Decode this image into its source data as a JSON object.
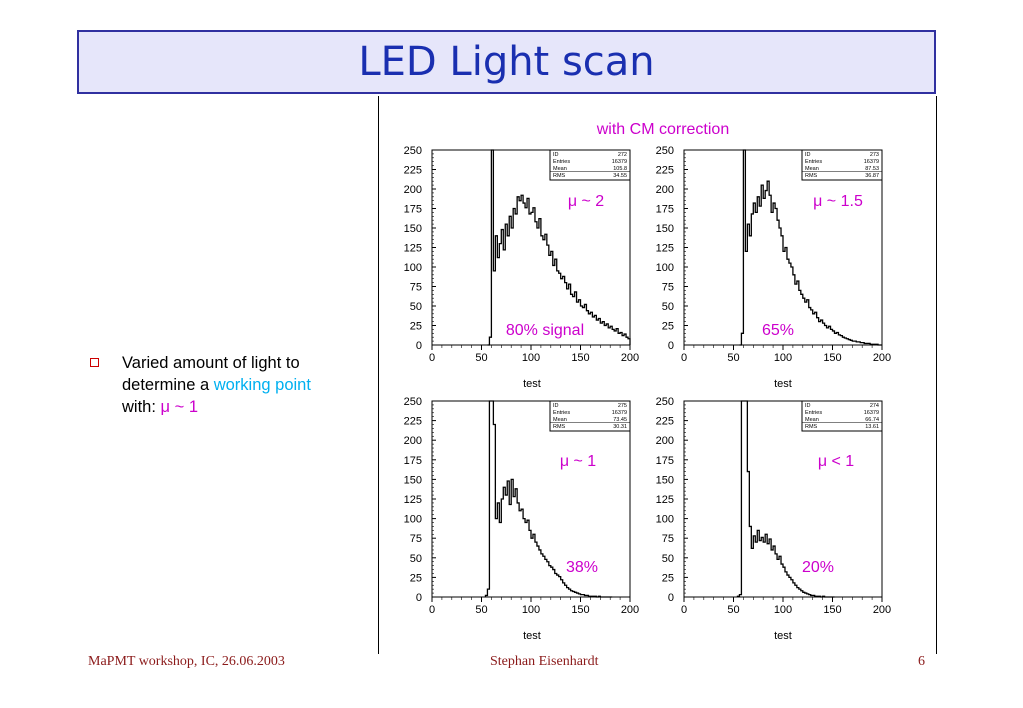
{
  "slide": {
    "title": "LED Light scan",
    "bullet": {
      "prefix": "Varied amount of light to determine a ",
      "highlight": "working point",
      "suffix_label": "with: ",
      "mu_expr": "μ ~ 1"
    }
  },
  "figure": {
    "caption": "with CM correction",
    "colors": {
      "annotation": "#cc00cc",
      "hist": "#000000"
    }
  },
  "footer": {
    "left": "MaPMT workshop, IC, 26.06.2003",
    "center": "Stephan Eisenhardt",
    "right": "6"
  },
  "chart_data": [
    {
      "type": "histogram",
      "xlabel": "test",
      "xlim": [
        0,
        200
      ],
      "ylim": [
        0,
        250
      ],
      "xticks": [
        "0",
        "50",
        "100",
        "150",
        "200"
      ],
      "yticks": [
        "0",
        "25",
        "50",
        "75",
        "100",
        "125",
        "150",
        "175",
        "200",
        "225",
        "250"
      ],
      "stats": [
        [
          "ID",
          "272"
        ],
        [
          "Entries",
          "16379"
        ],
        [
          "Mean",
          "105.8"
        ],
        [
          "RMS",
          "34.55"
        ]
      ],
      "annotations": [
        "μ ~ 2",
        "80% signal"
      ],
      "bin_width": 2,
      "x": [
        56,
        58,
        60,
        62,
        64,
        66,
        68,
        70,
        72,
        74,
        76,
        78,
        80,
        82,
        84,
        86,
        88,
        90,
        92,
        94,
        96,
        98,
        100,
        102,
        104,
        106,
        108,
        110,
        112,
        114,
        116,
        118,
        120,
        122,
        124,
        126,
        128,
        130,
        132,
        134,
        136,
        138,
        140,
        142,
        144,
        146,
        148,
        150,
        152,
        154,
        156,
        158,
        160,
        162,
        164,
        166,
        168,
        170,
        172,
        174,
        176,
        178,
        180,
        182,
        184,
        186,
        188,
        190,
        192,
        194,
        196,
        198
      ],
      "values": [
        0,
        10,
        250,
        95,
        140,
        112,
        130,
        148,
        122,
        155,
        140,
        165,
        150,
        175,
        168,
        190,
        185,
        192,
        182,
        176,
        188,
        168,
        170,
        176,
        158,
        150,
        162,
        140,
        135,
        142,
        128,
        115,
        120,
        102,
        110,
        95,
        92,
        85,
        88,
        80,
        72,
        78,
        65,
        62,
        68,
        55,
        58,
        50,
        48,
        52,
        44,
        40,
        42,
        36,
        38,
        32,
        34,
        28,
        30,
        25,
        27,
        22,
        24,
        20,
        18,
        21,
        15,
        16,
        12,
        14,
        10,
        8
      ]
    },
    {
      "type": "histogram",
      "xlabel": "test",
      "xlim": [
        0,
        200
      ],
      "ylim": [
        0,
        250
      ],
      "xticks": [
        "0",
        "50",
        "100",
        "150",
        "200"
      ],
      "yticks": [
        "0",
        "25",
        "50",
        "75",
        "100",
        "125",
        "150",
        "175",
        "200",
        "225",
        "250"
      ],
      "stats": [
        [
          "ID",
          "273"
        ],
        [
          "Entries",
          "16379"
        ],
        [
          "Mean",
          "87.53"
        ],
        [
          "RMS",
          "36.87"
        ]
      ],
      "annotations": [
        "μ ~ 1.5",
        "65%"
      ],
      "bin_width": 2,
      "x": [
        56,
        58,
        60,
        62,
        64,
        66,
        68,
        70,
        72,
        74,
        76,
        78,
        80,
        82,
        84,
        86,
        88,
        90,
        92,
        94,
        96,
        98,
        100,
        102,
        104,
        106,
        108,
        110,
        112,
        114,
        116,
        118,
        120,
        122,
        124,
        126,
        128,
        130,
        132,
        134,
        136,
        138,
        140,
        142,
        144,
        146,
        148,
        150,
        152,
        154,
        156,
        158,
        160,
        162,
        164,
        166,
        168,
        170,
        172,
        174,
        176,
        178,
        180,
        182,
        184,
        186,
        188,
        190,
        192,
        194,
        196,
        198
      ],
      "values": [
        0,
        15,
        250,
        120,
        155,
        140,
        168,
        182,
        170,
        190,
        178,
        205,
        188,
        198,
        210,
        192,
        170,
        182,
        175,
        160,
        150,
        140,
        120,
        125,
        110,
        105,
        100,
        90,
        78,
        82,
        70,
        65,
        60,
        55,
        58,
        48,
        45,
        40,
        42,
        35,
        30,
        32,
        28,
        25,
        22,
        24,
        20,
        18,
        15,
        16,
        13,
        12,
        10,
        9,
        8,
        7,
        6,
        5,
        5,
        4,
        4,
        3,
        3,
        2,
        2,
        2,
        1,
        1,
        1,
        1,
        0,
        0
      ]
    },
    {
      "type": "histogram",
      "xlabel": "test",
      "xlim": [
        0,
        200
      ],
      "ylim": [
        0,
        250
      ],
      "xticks": [
        "0",
        "50",
        "100",
        "150",
        "200"
      ],
      "yticks": [
        "0",
        "25",
        "50",
        "75",
        "100",
        "125",
        "150",
        "175",
        "200",
        "225",
        "250"
      ],
      "stats": [
        [
          "ID",
          "275"
        ],
        [
          "Entries",
          "16379"
        ],
        [
          "Mean",
          "73.45"
        ],
        [
          "RMS",
          "30.31"
        ]
      ],
      "annotations": [
        "μ ~ 1",
        "38%"
      ],
      "bin_width": 2,
      "x": [
        54,
        56,
        58,
        60,
        62,
        64,
        66,
        68,
        70,
        72,
        74,
        76,
        78,
        80,
        82,
        84,
        86,
        88,
        90,
        92,
        94,
        96,
        98,
        100,
        102,
        104,
        106,
        108,
        110,
        112,
        114,
        116,
        118,
        120,
        122,
        124,
        126,
        128,
        130,
        132,
        134,
        136,
        138,
        140,
        142,
        144,
        146,
        148,
        150,
        152,
        154,
        156,
        158,
        160,
        162,
        164,
        166,
        168,
        170,
        172,
        174,
        176,
        178,
        180
      ],
      "values": [
        2,
        10,
        250,
        250,
        220,
        100,
        120,
        95,
        125,
        140,
        130,
        148,
        118,
        150,
        128,
        138,
        120,
        110,
        112,
        100,
        95,
        98,
        85,
        75,
        80,
        70,
        65,
        60,
        55,
        52,
        48,
        45,
        40,
        38,
        35,
        30,
        28,
        26,
        22,
        18,
        15,
        12,
        10,
        8,
        7,
        6,
        5,
        4,
        3,
        3,
        2,
        2,
        1,
        1,
        1,
        1,
        0,
        1,
        0,
        0,
        0,
        0,
        0,
        0
      ]
    },
    {
      "type": "histogram",
      "xlabel": "test",
      "xlim": [
        0,
        200
      ],
      "ylim": [
        0,
        250
      ],
      "xticks": [
        "0",
        "50",
        "100",
        "150",
        "200"
      ],
      "yticks": [
        "0",
        "25",
        "50",
        "75",
        "100",
        "125",
        "150",
        "175",
        "200",
        "225",
        "250"
      ],
      "stats": [
        [
          "ID",
          "274"
        ],
        [
          "Entries",
          "16379"
        ],
        [
          "Mean",
          "66.74"
        ],
        [
          "RMS",
          "13.61"
        ]
      ],
      "annotations": [
        "μ < 1",
        "20%"
      ],
      "bin_width": 2,
      "x": [
        54,
        56,
        58,
        60,
        62,
        64,
        66,
        68,
        70,
        72,
        74,
        76,
        78,
        80,
        82,
        84,
        86,
        88,
        90,
        92,
        94,
        96,
        98,
        100,
        102,
        104,
        106,
        108,
        110,
        112,
        114,
        116,
        118,
        120,
        122,
        124,
        126,
        128,
        130,
        132,
        134,
        136,
        138,
        140,
        142,
        144,
        146,
        148,
        150
      ],
      "values": [
        1,
        3,
        250,
        250,
        250,
        160,
        90,
        62,
        78,
        70,
        85,
        72,
        76,
        70,
        80,
        68,
        74,
        60,
        65,
        55,
        48,
        52,
        42,
        38,
        32,
        28,
        25,
        22,
        18,
        15,
        12,
        10,
        8,
        6,
        5,
        4,
        3,
        2,
        2,
        1,
        1,
        1,
        0,
        1,
        0,
        0,
        0,
        0,
        0
      ]
    }
  ]
}
